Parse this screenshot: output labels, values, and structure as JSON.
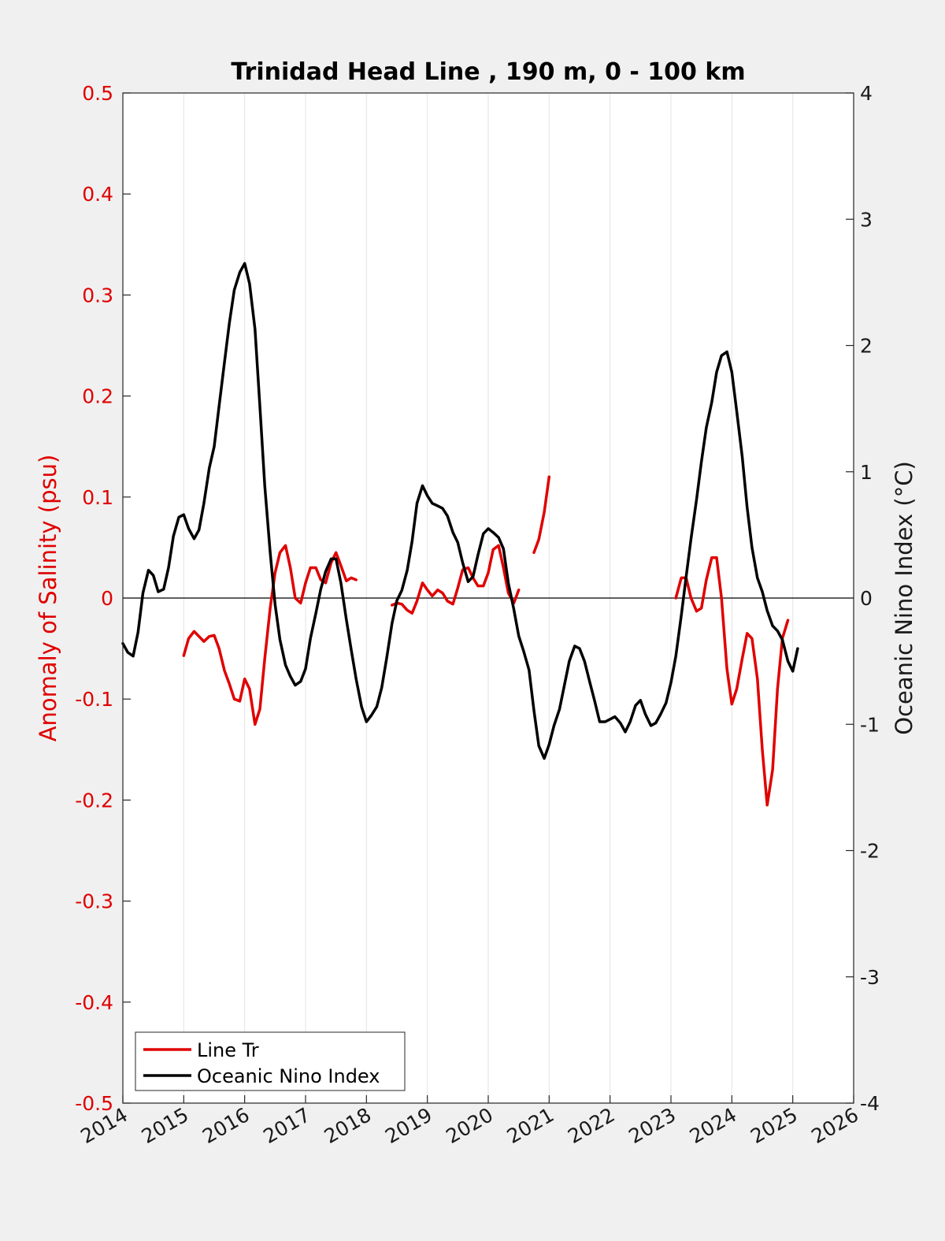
{
  "chart_data": {
    "type": "line",
    "title": "Trinidad Head Line , 190 m, 0 - 100 km",
    "xlabel": "",
    "ylabel_left": "Anomaly of Salinity (psu)",
    "ylabel_right": "Oceanic Nino Index (°C)",
    "xlim": [
      2014,
      2026
    ],
    "ylim_left": [
      -0.5,
      0.5
    ],
    "ylim_right": [
      -4,
      4
    ],
    "x_ticks": [
      "2014",
      "2015",
      "2016",
      "2017",
      "2018",
      "2019",
      "2020",
      "2021",
      "2022",
      "2023",
      "2024",
      "2025",
      "2026"
    ],
    "y_left_ticks": [
      "-0.5",
      "-0.4",
      "-0.3",
      "-0.2",
      "-0.1",
      "0",
      "0.1",
      "0.2",
      "0.3",
      "0.4",
      "0.5"
    ],
    "y_right_ticks": [
      "-4",
      "-3",
      "-2",
      "-1",
      "0",
      "1",
      "2",
      "3",
      "4"
    ],
    "grid": "vertical",
    "zero_line": true,
    "legend_position": "bottom-left",
    "series": [
      {
        "name": "Line Tr",
        "axis": "left",
        "color": "#e00000",
        "segments": [
          [
            [
              2015.0,
              -0.057
            ],
            [
              2015.08,
              -0.04
            ],
            [
              2015.17,
              -0.033
            ],
            [
              2015.25,
              -0.038
            ],
            [
              2015.33,
              -0.043
            ],
            [
              2015.42,
              -0.038
            ],
            [
              2015.5,
              -0.037
            ],
            [
              2015.58,
              -0.05
            ],
            [
              2015.67,
              -0.072
            ],
            [
              2015.75,
              -0.085
            ],
            [
              2015.83,
              -0.1
            ],
            [
              2015.92,
              -0.102
            ],
            [
              2016.0,
              -0.08
            ],
            [
              2016.08,
              -0.09
            ],
            [
              2016.17,
              -0.125
            ],
            [
              2016.25,
              -0.11
            ],
            [
              2016.33,
              -0.06
            ],
            [
              2016.42,
              -0.01
            ],
            [
              2016.5,
              0.025
            ],
            [
              2016.58,
              0.045
            ],
            [
              2016.67,
              0.052
            ],
            [
              2016.75,
              0.03
            ],
            [
              2016.83,
              0.0
            ],
            [
              2016.92,
              -0.005
            ],
            [
              2017.0,
              0.015
            ],
            [
              2017.08,
              0.03
            ],
            [
              2017.17,
              0.03
            ],
            [
              2017.25,
              0.018
            ],
            [
              2017.33,
              0.015
            ],
            [
              2017.42,
              0.035
            ],
            [
              2017.5,
              0.045
            ],
            [
              2017.58,
              0.032
            ],
            [
              2017.67,
              0.017
            ],
            [
              2017.75,
              0.02
            ],
            [
              2017.83,
              0.018
            ]
          ],
          [
            [
              2018.42,
              -0.007
            ],
            [
              2018.5,
              -0.005
            ],
            [
              2018.58,
              -0.006
            ],
            [
              2018.67,
              -0.012
            ],
            [
              2018.75,
              -0.015
            ],
            [
              2018.83,
              -0.003
            ],
            [
              2018.92,
              0.015
            ],
            [
              2019.0,
              0.008
            ],
            [
              2019.08,
              0.002
            ],
            [
              2019.17,
              0.008
            ],
            [
              2019.25,
              0.005
            ],
            [
              2019.33,
              -0.003
            ],
            [
              2019.42,
              -0.006
            ],
            [
              2019.5,
              0.01
            ],
            [
              2019.58,
              0.028
            ],
            [
              2019.67,
              0.03
            ],
            [
              2019.75,
              0.02
            ],
            [
              2019.83,
              0.012
            ],
            [
              2019.92,
              0.012
            ],
            [
              2020.0,
              0.025
            ],
            [
              2020.08,
              0.048
            ],
            [
              2020.17,
              0.052
            ],
            [
              2020.25,
              0.03
            ],
            [
              2020.33,
              0.005
            ],
            [
              2020.42,
              -0.005
            ],
            [
              2020.5,
              0.008
            ]
          ],
          [
            [
              2020.75,
              0.045
            ],
            [
              2020.83,
              0.058
            ],
            [
              2020.92,
              0.085
            ],
            [
              2021.0,
              0.12
            ]
          ],
          [
            [
              2023.08,
              0.0
            ],
            [
              2023.17,
              0.02
            ],
            [
              2023.25,
              0.02
            ],
            [
              2023.33,
              0.0
            ],
            [
              2023.42,
              -0.013
            ],
            [
              2023.5,
              -0.01
            ],
            [
              2023.58,
              0.018
            ],
            [
              2023.67,
              0.04
            ],
            [
              2023.75,
              0.04
            ],
            [
              2023.83,
              0.0
            ],
            [
              2023.92,
              -0.07
            ],
            [
              2024.0,
              -0.105
            ],
            [
              2024.08,
              -0.09
            ],
            [
              2024.17,
              -0.06
            ],
            [
              2024.25,
              -0.035
            ],
            [
              2024.33,
              -0.04
            ],
            [
              2024.42,
              -0.08
            ],
            [
              2024.5,
              -0.15
            ],
            [
              2024.58,
              -0.205
            ],
            [
              2024.67,
              -0.17
            ],
            [
              2024.75,
              -0.09
            ],
            [
              2024.83,
              -0.04
            ],
            [
              2024.92,
              -0.022
            ]
          ]
        ]
      },
      {
        "name": "Oceanic Nino Index",
        "axis": "right",
        "color": "#000000",
        "points": [
          [
            2014.0,
            -0.36
          ],
          [
            2014.08,
            -0.43
          ],
          [
            2014.17,
            -0.46
          ],
          [
            2014.25,
            -0.27
          ],
          [
            2014.33,
            0.04
          ],
          [
            2014.42,
            0.22
          ],
          [
            2014.5,
            0.18
          ],
          [
            2014.58,
            0.05
          ],
          [
            2014.67,
            0.07
          ],
          [
            2014.75,
            0.24
          ],
          [
            2014.83,
            0.49
          ],
          [
            2014.92,
            0.64
          ],
          [
            2015.0,
            0.66
          ],
          [
            2015.08,
            0.55
          ],
          [
            2015.17,
            0.47
          ],
          [
            2015.25,
            0.54
          ],
          [
            2015.33,
            0.75
          ],
          [
            2015.42,
            1.03
          ],
          [
            2015.5,
            1.2
          ],
          [
            2015.58,
            1.52
          ],
          [
            2015.67,
            1.87
          ],
          [
            2015.75,
            2.18
          ],
          [
            2015.83,
            2.44
          ],
          [
            2015.92,
            2.58
          ],
          [
            2016.0,
            2.65
          ],
          [
            2016.08,
            2.49
          ],
          [
            2016.17,
            2.13
          ],
          [
            2016.25,
            1.52
          ],
          [
            2016.33,
            0.89
          ],
          [
            2016.42,
            0.36
          ],
          [
            2016.5,
            -0.05
          ],
          [
            2016.58,
            -0.33
          ],
          [
            2016.67,
            -0.53
          ],
          [
            2016.75,
            -0.62
          ],
          [
            2016.83,
            -0.69
          ],
          [
            2016.92,
            -0.66
          ],
          [
            2017.0,
            -0.56
          ],
          [
            2017.08,
            -0.32
          ],
          [
            2017.17,
            -0.12
          ],
          [
            2017.25,
            0.07
          ],
          [
            2017.33,
            0.21
          ],
          [
            2017.42,
            0.31
          ],
          [
            2017.5,
            0.31
          ],
          [
            2017.58,
            0.12
          ],
          [
            2017.67,
            -0.17
          ],
          [
            2017.75,
            -0.41
          ],
          [
            2017.83,
            -0.64
          ],
          [
            2017.92,
            -0.86
          ],
          [
            2018.0,
            -0.98
          ],
          [
            2018.08,
            -0.93
          ],
          [
            2018.17,
            -0.86
          ],
          [
            2018.25,
            -0.71
          ],
          [
            2018.33,
            -0.48
          ],
          [
            2018.42,
            -0.2
          ],
          [
            2018.5,
            -0.02
          ],
          [
            2018.58,
            0.06
          ],
          [
            2018.67,
            0.22
          ],
          [
            2018.75,
            0.45
          ],
          [
            2018.83,
            0.75
          ],
          [
            2018.92,
            0.89
          ],
          [
            2019.0,
            0.81
          ],
          [
            2019.08,
            0.75
          ],
          [
            2019.17,
            0.73
          ],
          [
            2019.25,
            0.71
          ],
          [
            2019.33,
            0.65
          ],
          [
            2019.42,
            0.52
          ],
          [
            2019.5,
            0.44
          ],
          [
            2019.58,
            0.28
          ],
          [
            2019.67,
            0.13
          ],
          [
            2019.75,
            0.17
          ],
          [
            2019.83,
            0.34
          ],
          [
            2019.92,
            0.51
          ],
          [
            2020.0,
            0.55
          ],
          [
            2020.08,
            0.52
          ],
          [
            2020.17,
            0.48
          ],
          [
            2020.25,
            0.39
          ],
          [
            2020.33,
            0.12
          ],
          [
            2020.42,
            -0.09
          ],
          [
            2020.5,
            -0.3
          ],
          [
            2020.58,
            -0.42
          ],
          [
            2020.67,
            -0.57
          ],
          [
            2020.75,
            -0.89
          ],
          [
            2020.83,
            -1.17
          ],
          [
            2020.92,
            -1.27
          ],
          [
            2021.0,
            -1.16
          ],
          [
            2021.08,
            -1.01
          ],
          [
            2021.17,
            -0.88
          ],
          [
            2021.25,
            -0.69
          ],
          [
            2021.33,
            -0.5
          ],
          [
            2021.42,
            -0.38
          ],
          [
            2021.5,
            -0.4
          ],
          [
            2021.58,
            -0.5
          ],
          [
            2021.67,
            -0.67
          ],
          [
            2021.75,
            -0.82
          ],
          [
            2021.83,
            -0.98
          ],
          [
            2021.92,
            -0.98
          ],
          [
            2022.0,
            -0.96
          ],
          [
            2022.08,
            -0.94
          ],
          [
            2022.17,
            -0.99
          ],
          [
            2022.25,
            -1.06
          ],
          [
            2022.33,
            -0.98
          ],
          [
            2022.42,
            -0.85
          ],
          [
            2022.5,
            -0.81
          ],
          [
            2022.58,
            -0.92
          ],
          [
            2022.67,
            -1.01
          ],
          [
            2022.75,
            -0.99
          ],
          [
            2022.83,
            -0.92
          ],
          [
            2022.92,
            -0.83
          ],
          [
            2023.0,
            -0.67
          ],
          [
            2023.08,
            -0.46
          ],
          [
            2023.17,
            -0.14
          ],
          [
            2023.25,
            0.17
          ],
          [
            2023.33,
            0.47
          ],
          [
            2023.42,
            0.78
          ],
          [
            2023.5,
            1.08
          ],
          [
            2023.58,
            1.35
          ],
          [
            2023.67,
            1.55
          ],
          [
            2023.75,
            1.79
          ],
          [
            2023.83,
            1.92
          ],
          [
            2023.92,
            1.95
          ],
          [
            2024.0,
            1.79
          ],
          [
            2024.08,
            1.48
          ],
          [
            2024.17,
            1.12
          ],
          [
            2024.25,
            0.72
          ],
          [
            2024.33,
            0.4
          ],
          [
            2024.42,
            0.16
          ],
          [
            2024.5,
            0.05
          ],
          [
            2024.58,
            -0.1
          ],
          [
            2024.67,
            -0.22
          ],
          [
            2024.75,
            -0.26
          ],
          [
            2024.83,
            -0.33
          ],
          [
            2024.92,
            -0.5
          ],
          [
            2025.0,
            -0.58
          ],
          [
            2025.08,
            -0.4
          ]
        ]
      }
    ]
  }
}
